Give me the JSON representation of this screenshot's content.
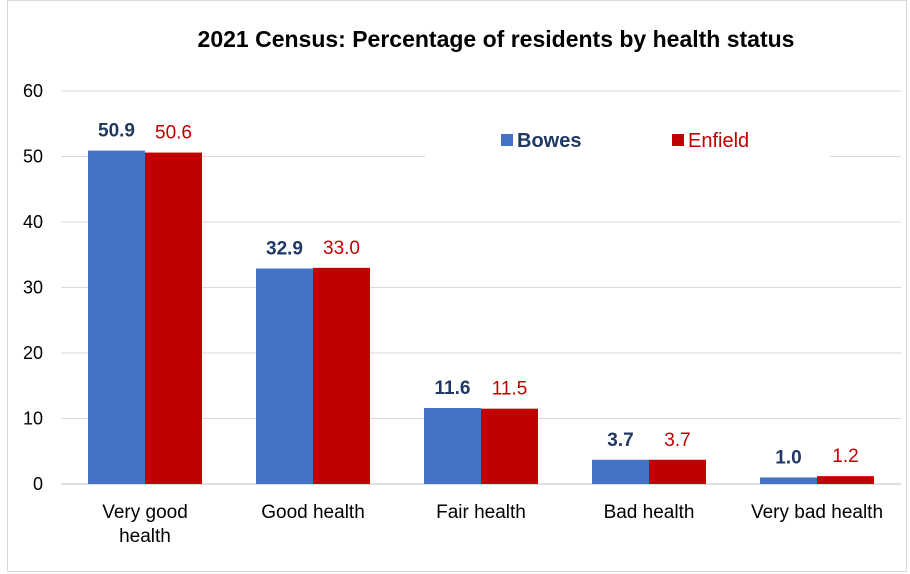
{
  "chart_data": {
    "type": "bar",
    "title": "2021 Census: Percentage of residents by health status",
    "categories": [
      [
        "Very good",
        "health"
      ],
      [
        "Good health"
      ],
      [
        "Fair health"
      ],
      [
        "Bad health"
      ],
      [
        "Very bad health"
      ]
    ],
    "series": [
      {
        "name": "Bowes",
        "values": [
          50.9,
          32.9,
          11.6,
          3.7,
          1.0
        ],
        "labels": [
          "50.9",
          "32.9",
          "11.6",
          "3.7",
          "1.0"
        ],
        "color": "#4472c4",
        "label_color": "#1f3864",
        "label_bold": true
      },
      {
        "name": "Enfield",
        "values": [
          50.6,
          33.0,
          11.5,
          3.7,
          1.2
        ],
        "labels": [
          "50.6",
          "33.0",
          "11.5",
          "3.7",
          "1.2"
        ],
        "color": "#c00000",
        "label_color": "#c00000",
        "label_bold": false
      }
    ],
    "yticks": [
      "0",
      "10",
      "20",
      "30",
      "40",
      "50",
      "60"
    ],
    "ylim": [
      0,
      60
    ],
    "grid": true,
    "legend": "top-right",
    "xlabel": "",
    "ylabel": ""
  }
}
